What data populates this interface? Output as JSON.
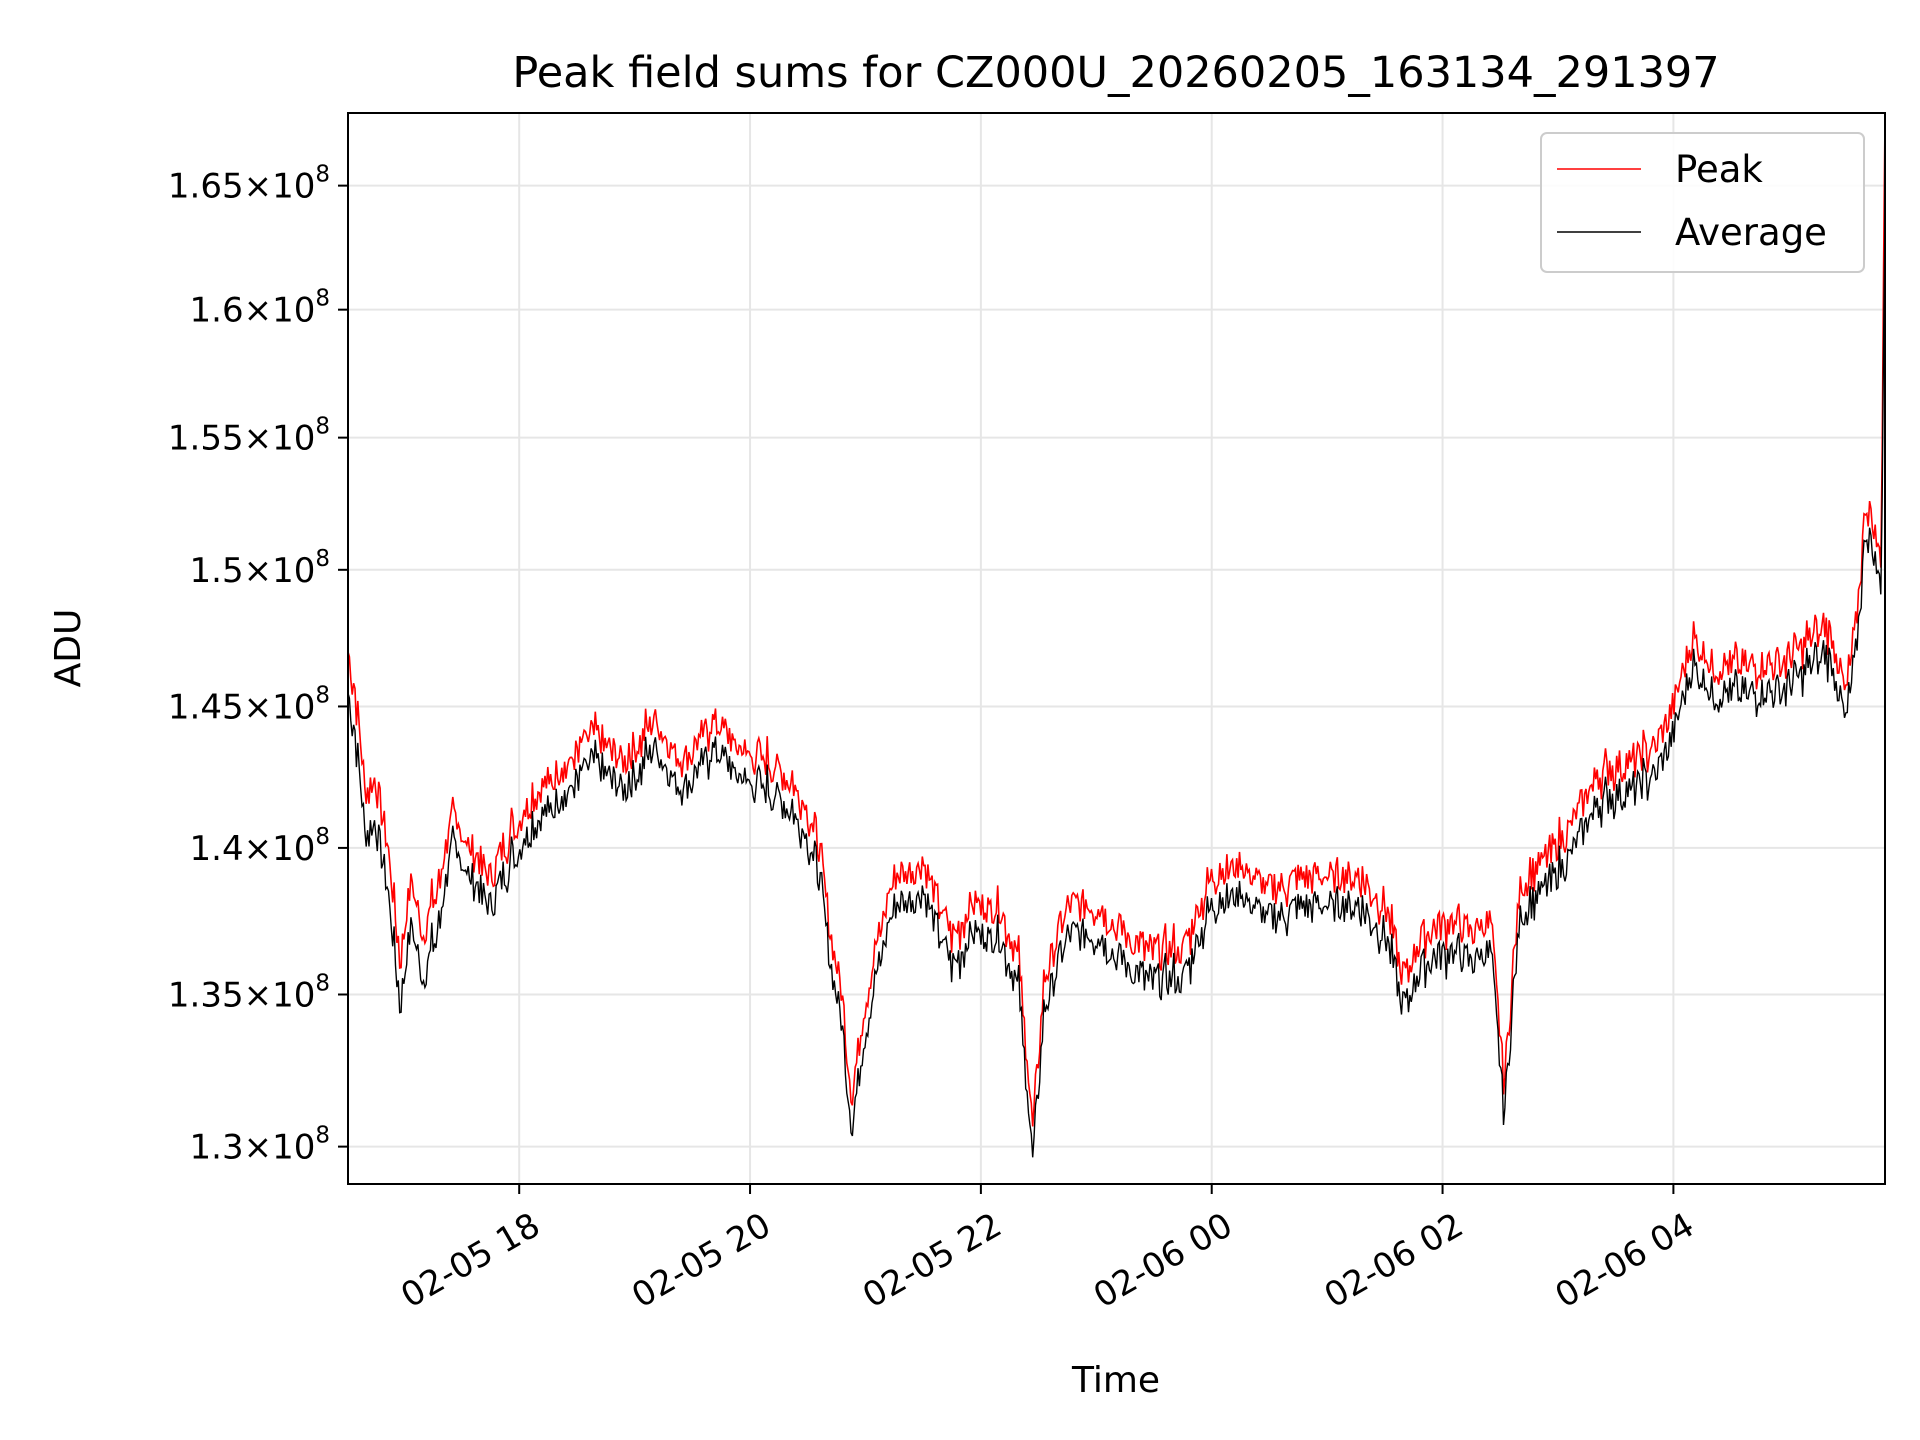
{
  "chart_data": {
    "type": "line",
    "title": "Peak field sums for CZ000U_20260205_163134_291397",
    "xlabel": "Time",
    "ylabel": "ADU",
    "x_range": [
      "2026-02-05 16:31",
      "2026-02-06 05:50"
    ],
    "ylim": [
      128800000.0,
      168000000.0
    ],
    "x_ticks": [
      {
        "value": "2026-02-05 18:00",
        "label": "02-05 18"
      },
      {
        "value": "2026-02-05 20:00",
        "label": "02-05 20"
      },
      {
        "value": "2026-02-05 22:00",
        "label": "02-05 22"
      },
      {
        "value": "2026-02-06 00:00",
        "label": "02-06 00"
      },
      {
        "value": "2026-02-06 02:00",
        "label": "02-06 02"
      },
      {
        "value": "2026-02-06 04:00",
        "label": "02-06 04"
      }
    ],
    "y_ticks": [
      {
        "value": 130000000.0,
        "mantissa": "1.3",
        "exponent": "8"
      },
      {
        "value": 135000000.0,
        "mantissa": "1.35",
        "exponent": "8"
      },
      {
        "value": 140000000.0,
        "mantissa": "1.4",
        "exponent": "8"
      },
      {
        "value": 145000000.0,
        "mantissa": "1.45",
        "exponent": "8"
      },
      {
        "value": 150000000.0,
        "mantissa": "1.5",
        "exponent": "8"
      },
      {
        "value": 155000000.0,
        "mantissa": "1.55",
        "exponent": "8"
      },
      {
        "value": 160000000.0,
        "mantissa": "1.6",
        "exponent": "8"
      },
      {
        "value": 165000000.0,
        "mantissa": "1.65",
        "exponent": "8"
      }
    ],
    "grid": true,
    "legend_position": "top-right",
    "series": [
      {
        "name": "Average",
        "color": "#000000",
        "points": [
          [
            "2026-02-05 16:31",
            145500000.0
          ],
          [
            "2026-02-05 16:35",
            144000000.0
          ],
          [
            "2026-02-05 16:40",
            140500000.0
          ],
          [
            "2026-02-05 16:45",
            141000000.0
          ],
          [
            "2026-02-05 16:52",
            138500000.0
          ],
          [
            "2026-02-05 16:58",
            134500000.0
          ],
          [
            "2026-02-05 17:04",
            137500000.0
          ],
          [
            "2026-02-05 17:10",
            135500000.0
          ],
          [
            "2026-02-05 17:17",
            137000000.0
          ],
          [
            "2026-02-05 17:25",
            140000000.0
          ],
          [
            "2026-02-05 17:35",
            139000000.0
          ],
          [
            "2026-02-05 17:45",
            138000000.0
          ],
          [
            "2026-02-05 17:55",
            139500000.0
          ],
          [
            "2026-02-05 18:10",
            141000000.0
          ],
          [
            "2026-02-05 18:25",
            142000000.0
          ],
          [
            "2026-02-05 18:40",
            143000000.0
          ],
          [
            "2026-02-05 18:55",
            142000000.0
          ],
          [
            "2026-02-05 19:10",
            143500000.0
          ],
          [
            "2026-02-05 19:25",
            142000000.0
          ],
          [
            "2026-02-05 19:40",
            143500000.0
          ],
          [
            "2026-02-05 19:55",
            142500000.0
          ],
          [
            "2026-02-05 20:10",
            142000000.0
          ],
          [
            "2026-02-05 20:25",
            141000000.0
          ],
          [
            "2026-02-05 20:35",
            139500000.0
          ],
          [
            "2026-02-05 20:42",
            136000000.0
          ],
          [
            "2026-02-05 20:48",
            134000000.0
          ],
          [
            "2026-02-05 20:53",
            130500000.0
          ],
          [
            "2026-02-05 20:58",
            133000000.0
          ],
          [
            "2026-02-05 21:05",
            135500000.0
          ],
          [
            "2026-02-05 21:15",
            138000000.0
          ],
          [
            "2026-02-05 21:30",
            138500000.0
          ],
          [
            "2026-02-05 21:45",
            136000000.0
          ],
          [
            "2026-02-05 21:55",
            137000000.0
          ],
          [
            "2026-02-05 22:10",
            137000000.0
          ],
          [
            "2026-02-05 22:20",
            135000000.0
          ],
          [
            "2026-02-05 22:27",
            129500000.0
          ],
          [
            "2026-02-05 22:33",
            134500000.0
          ],
          [
            "2026-02-05 22:45",
            137000000.0
          ],
          [
            "2026-02-05 23:00",
            137000000.0
          ],
          [
            "2026-02-05 23:15",
            136000000.0
          ],
          [
            "2026-02-05 23:30",
            135500000.0
          ],
          [
            "2026-02-05 23:45",
            135500000.0
          ],
          [
            "2026-02-06 00:00",
            138000000.0
          ],
          [
            "2026-02-06 00:15",
            138500000.0
          ],
          [
            "2026-02-06 00:30",
            137500000.0
          ],
          [
            "2026-02-06 00:45",
            138000000.0
          ],
          [
            "2026-02-06 01:00",
            138000000.0
          ],
          [
            "2026-02-06 01:15",
            138000000.0
          ],
          [
            "2026-02-06 01:30",
            137000000.0
          ],
          [
            "2026-02-06 01:40",
            134500000.0
          ],
          [
            "2026-02-06 01:50",
            136000000.0
          ],
          [
            "2026-02-06 02:05",
            136500000.0
          ],
          [
            "2026-02-06 02:15",
            136000000.0
          ],
          [
            "2026-02-06 02:25",
            136500000.0
          ],
          [
            "2026-02-06 02:32",
            131000000.0
          ],
          [
            "2026-02-06 02:40",
            137500000.0
          ],
          [
            "2026-02-06 02:50",
            138500000.0
          ],
          [
            "2026-02-06 03:05",
            139500000.0
          ],
          [
            "2026-02-06 03:20",
            141500000.0
          ],
          [
            "2026-02-06 03:35",
            142000000.0
          ],
          [
            "2026-02-06 03:50",
            142500000.0
          ],
          [
            "2026-02-06 04:00",
            144000000.0
          ],
          [
            "2026-02-06 04:10",
            146500000.0
          ],
          [
            "2026-02-06 04:20",
            145500000.0
          ],
          [
            "2026-02-06 04:35",
            145500000.0
          ],
          [
            "2026-02-06 04:50",
            145500000.0
          ],
          [
            "2026-02-06 05:05",
            146000000.0
          ],
          [
            "2026-02-06 05:20",
            147000000.0
          ],
          [
            "2026-02-06 05:30",
            144500000.0
          ],
          [
            "2026-02-06 05:35",
            147000000.0
          ],
          [
            "2026-02-06 05:40",
            151500000.0
          ],
          [
            "2026-02-06 05:44",
            150500000.0
          ],
          [
            "2026-02-06 05:48",
            149500000.0
          ],
          [
            "2026-02-06 05:50",
            164000000.0
          ]
        ]
      },
      {
        "name": "Peak",
        "color": "#ff0000",
        "points": [
          [
            "2026-02-05 16:31",
            147000000.0
          ],
          [
            "2026-02-05 16:35",
            145500000.0
          ],
          [
            "2026-02-05 16:40",
            142000000.0
          ],
          [
            "2026-02-05 16:45",
            142500000.0
          ],
          [
            "2026-02-05 16:52",
            140000000.0
          ],
          [
            "2026-02-05 16:58",
            136000000.0
          ],
          [
            "2026-02-05 17:04",
            139000000.0
          ],
          [
            "2026-02-05 17:10",
            137000000.0
          ],
          [
            "2026-02-05 17:17",
            138500000.0
          ],
          [
            "2026-02-05 17:25",
            141000000.0
          ],
          [
            "2026-02-05 17:35",
            140000000.0
          ],
          [
            "2026-02-05 17:45",
            139000000.0
          ],
          [
            "2026-02-05 17:55",
            140500000.0
          ],
          [
            "2026-02-05 18:10",
            142000000.0
          ],
          [
            "2026-02-05 18:25",
            143000000.0
          ],
          [
            "2026-02-05 18:40",
            144000000.0
          ],
          [
            "2026-02-05 18:55",
            143000000.0
          ],
          [
            "2026-02-05 19:10",
            144500000.0
          ],
          [
            "2026-02-05 19:25",
            143000000.0
          ],
          [
            "2026-02-05 19:40",
            144500000.0
          ],
          [
            "2026-02-05 19:55",
            143500000.0
          ],
          [
            "2026-02-05 20:10",
            143000000.0
          ],
          [
            "2026-02-05 20:25",
            142000000.0
          ],
          [
            "2026-02-05 20:35",
            140500000.0
          ],
          [
            "2026-02-05 20:42",
            137000000.0
          ],
          [
            "2026-02-05 20:48",
            135000000.0
          ],
          [
            "2026-02-05 20:53",
            131500000.0
          ],
          [
            "2026-02-05 20:58",
            134000000.0
          ],
          [
            "2026-02-05 21:05",
            136500000.0
          ],
          [
            "2026-02-05 21:15",
            139000000.0
          ],
          [
            "2026-02-05 21:30",
            139500000.0
          ],
          [
            "2026-02-05 21:45",
            137000000.0
          ],
          [
            "2026-02-05 21:55",
            138000000.0
          ],
          [
            "2026-02-05 22:10",
            138000000.0
          ],
          [
            "2026-02-05 22:20",
            136000000.0
          ],
          [
            "2026-02-05 22:27",
            130500000.0
          ],
          [
            "2026-02-05 22:33",
            135500000.0
          ],
          [
            "2026-02-05 22:45",
            138000000.0
          ],
          [
            "2026-02-05 23:00",
            138000000.0
          ],
          [
            "2026-02-05 23:15",
            137000000.0
          ],
          [
            "2026-02-05 23:30",
            136500000.0
          ],
          [
            "2026-02-05 23:45",
            136500000.0
          ],
          [
            "2026-02-06 00:00",
            139000000.0
          ],
          [
            "2026-02-06 00:15",
            139500000.0
          ],
          [
            "2026-02-06 00:30",
            138500000.0
          ],
          [
            "2026-02-06 00:45",
            139000000.0
          ],
          [
            "2026-02-06 01:00",
            139000000.0
          ],
          [
            "2026-02-06 01:15",
            139000000.0
          ],
          [
            "2026-02-06 01:30",
            138000000.0
          ],
          [
            "2026-02-06 01:40",
            135500000.0
          ],
          [
            "2026-02-06 01:50",
            137000000.0
          ],
          [
            "2026-02-06 02:05",
            137500000.0
          ],
          [
            "2026-02-06 02:15",
            137000000.0
          ],
          [
            "2026-02-06 02:25",
            137500000.0
          ],
          [
            "2026-02-06 02:32",
            132000000.0
          ],
          [
            "2026-02-06 02:40",
            138500000.0
          ],
          [
            "2026-02-06 02:50",
            139500000.0
          ],
          [
            "2026-02-06 03:05",
            140500000.0
          ],
          [
            "2026-02-06 03:20",
            142500000.0
          ],
          [
            "2026-02-06 03:35",
            143000000.0
          ],
          [
            "2026-02-06 03:50",
            143500000.0
          ],
          [
            "2026-02-06 04:00",
            145000000.0
          ],
          [
            "2026-02-06 04:10",
            147500000.0
          ],
          [
            "2026-02-06 04:20",
            146500000.0
          ],
          [
            "2026-02-06 04:35",
            146500000.0
          ],
          [
            "2026-02-06 04:50",
            146500000.0
          ],
          [
            "2026-02-06 05:05",
            147000000.0
          ],
          [
            "2026-02-06 05:20",
            148000000.0
          ],
          [
            "2026-02-06 05:30",
            145500000.0
          ],
          [
            "2026-02-06 05:35",
            148000000.0
          ],
          [
            "2026-02-06 05:40",
            152500000.0
          ],
          [
            "2026-02-06 05:44",
            151500000.0
          ],
          [
            "2026-02-06 05:48",
            150500000.0
          ],
          [
            "2026-02-06 05:50",
            168000000.0
          ]
        ]
      }
    ],
    "legend": [
      {
        "label": "Peak",
        "color": "#ff0000"
      },
      {
        "label": "Average",
        "color": "#000000"
      }
    ]
  }
}
